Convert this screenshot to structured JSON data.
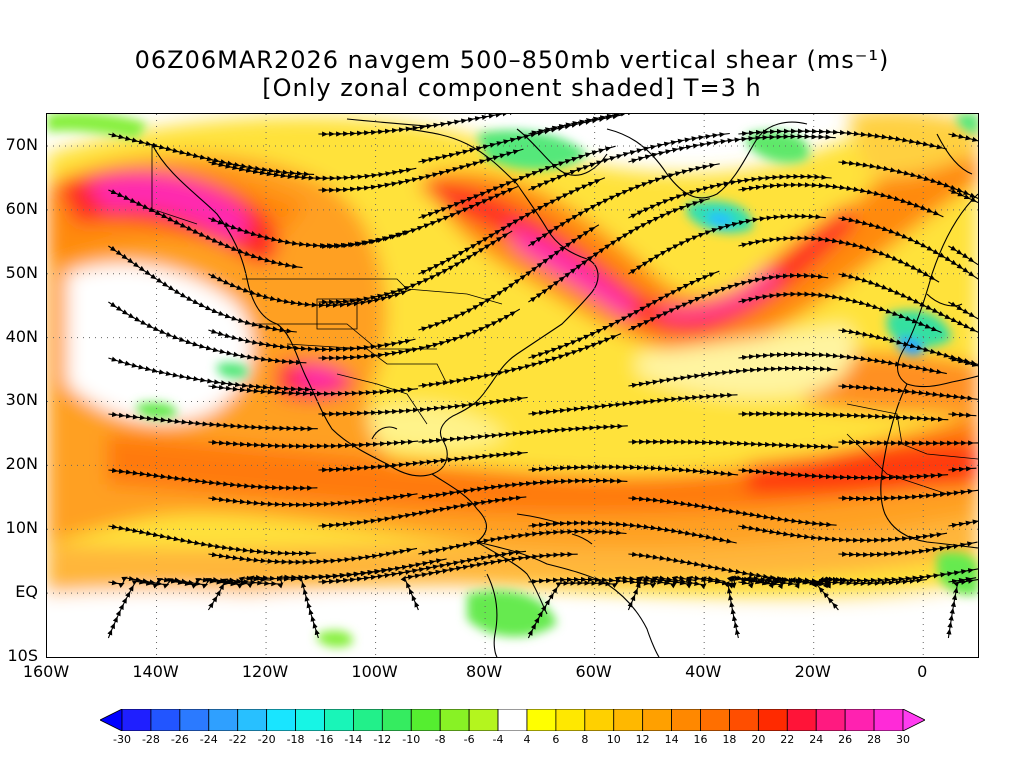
{
  "title": {
    "line1": "06Z06MAR2026 navgem 500–850mb vertical shear (ms⁻¹)",
    "line2": "[Only zonal component shaded] T=3 h"
  },
  "map": {
    "lon_range": [
      -160,
      10
    ],
    "lat_range": [
      -10,
      75
    ],
    "lat_ticks": [
      {
        "lat": 70,
        "label": "70N"
      },
      {
        "lat": 60,
        "label": "60N"
      },
      {
        "lat": 50,
        "label": "50N"
      },
      {
        "lat": 40,
        "label": "40N"
      },
      {
        "lat": 30,
        "label": "30N"
      },
      {
        "lat": 20,
        "label": "20N"
      },
      {
        "lat": 10,
        "label": "10N"
      },
      {
        "lat": 0,
        "label": "EQ"
      },
      {
        "lat": -10,
        "label": "10S"
      }
    ],
    "lon_ticks": [
      {
        "lon": -160,
        "label": "160W"
      },
      {
        "lon": -140,
        "label": "140W"
      },
      {
        "lon": -120,
        "label": "120W"
      },
      {
        "lon": -100,
        "label": "100W"
      },
      {
        "lon": -80,
        "label": "80W"
      },
      {
        "lon": -60,
        "label": "60W"
      },
      {
        "lon": -40,
        "label": "40W"
      },
      {
        "lon": -20,
        "label": "20W"
      },
      {
        "lon": 0,
        "label": "0"
      }
    ],
    "grid": "dotted",
    "streamlines": true
  },
  "colorbar": {
    "labels": [
      "-30",
      "-28",
      "-26",
      "-24",
      "-22",
      "-20",
      "-18",
      "-16",
      "-14",
      "-12",
      "-10",
      "-8",
      "-6",
      "-4",
      "4",
      "6",
      "8",
      "10",
      "12",
      "14",
      "16",
      "18",
      "20",
      "22",
      "24",
      "26",
      "28",
      "30"
    ],
    "colors": [
      "#1f1fff",
      "#2255ff",
      "#2b7aff",
      "#2fa0ff",
      "#28c0ff",
      "#19e5ff",
      "#17f5e5",
      "#19f5b8",
      "#22f08a",
      "#35ec60",
      "#55ee30",
      "#88f225",
      "#b4f51e",
      "#ffffff",
      "#ffff00",
      "#ffe800",
      "#ffd000",
      "#ffb800",
      "#ffa000",
      "#ff8800",
      "#ff6f00",
      "#ff4e00",
      "#ff2a00",
      "#ff1438",
      "#ff1a80",
      "#ff22b0",
      "#ff2ad8"
    ],
    "extend_low": "#0000ff",
    "extend_high": "#ff3cf0"
  }
}
